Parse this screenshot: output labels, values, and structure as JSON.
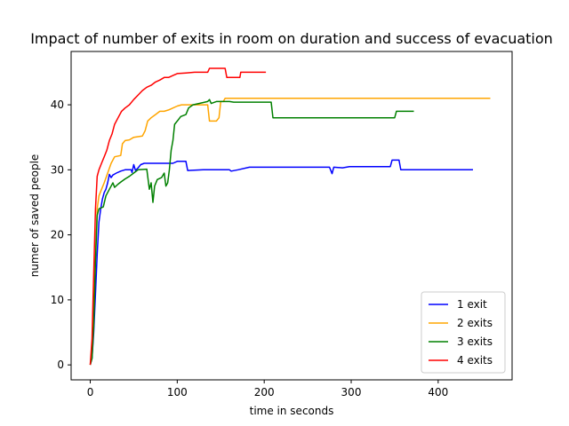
{
  "chart_data": {
    "type": "line",
    "title": "Impact of number of exits in room on duration and success of evacuation",
    "xlabel": "time in seconds",
    "ylabel": "numer of saved people",
    "xlim": [
      -22,
      485
    ],
    "ylim": [
      -2.3,
      48.2
    ],
    "xticks": [
      0,
      100,
      200,
      300,
      400
    ],
    "yticks": [
      0,
      10,
      20,
      30,
      40
    ],
    "grid": false,
    "legend_position": "lower-right",
    "series": [
      {
        "name": "1 exit",
        "color": "#0000ff",
        "points": [
          [
            0,
            0
          ],
          [
            2,
            1
          ],
          [
            4,
            5
          ],
          [
            6,
            11
          ],
          [
            8,
            17
          ],
          [
            10,
            22
          ],
          [
            12,
            24
          ],
          [
            14,
            25.5
          ],
          [
            16,
            26.5
          ],
          [
            18,
            27
          ],
          [
            20,
            28
          ],
          [
            22,
            29.3
          ],
          [
            24,
            28.8
          ],
          [
            26,
            29.2
          ],
          [
            30,
            29.5
          ],
          [
            35,
            29.8
          ],
          [
            40,
            30
          ],
          [
            47,
            30
          ],
          [
            48,
            29.6
          ],
          [
            50,
            30.8
          ],
          [
            52,
            29.9
          ],
          [
            55,
            30.3
          ],
          [
            58,
            30.8
          ],
          [
            62,
            31
          ],
          [
            95,
            31
          ],
          [
            100,
            31.3
          ],
          [
            110,
            31.3
          ],
          [
            112,
            29.9
          ],
          [
            130,
            30
          ],
          [
            160,
            30
          ],
          [
            162,
            29.8
          ],
          [
            170,
            30
          ],
          [
            183,
            30.4
          ],
          [
            275,
            30.4
          ],
          [
            278,
            29.4
          ],
          [
            280,
            30.4
          ],
          [
            290,
            30.3
          ],
          [
            298,
            30.5
          ],
          [
            345,
            30.5
          ],
          [
            347,
            31.5
          ],
          [
            355,
            31.5
          ],
          [
            357,
            30
          ],
          [
            440,
            30
          ]
        ]
      },
      {
        "name": "2 exits",
        "color": "#ffa500",
        "points": [
          [
            0,
            0
          ],
          [
            2,
            2
          ],
          [
            4,
            8
          ],
          [
            6,
            17
          ],
          [
            8,
            24
          ],
          [
            10,
            26
          ],
          [
            13,
            27
          ],
          [
            16,
            28
          ],
          [
            20,
            29.5
          ],
          [
            24,
            31
          ],
          [
            28,
            32
          ],
          [
            35,
            32.2
          ],
          [
            37,
            34
          ],
          [
            40,
            34.5
          ],
          [
            45,
            34.6
          ],
          [
            50,
            35
          ],
          [
            60,
            35.2
          ],
          [
            63,
            36
          ],
          [
            66,
            37.5
          ],
          [
            70,
            38
          ],
          [
            75,
            38.5
          ],
          [
            80,
            39
          ],
          [
            85,
            39
          ],
          [
            90,
            39.2
          ],
          [
            95,
            39.5
          ],
          [
            100,
            39.8
          ],
          [
            105,
            40
          ],
          [
            135,
            40
          ],
          [
            137,
            37.5
          ],
          [
            145,
            37.5
          ],
          [
            148,
            38
          ],
          [
            150,
            40.5
          ],
          [
            153,
            40.5
          ],
          [
            155,
            41
          ],
          [
            460,
            41
          ]
        ]
      },
      {
        "name": "3 exits",
        "color": "#008000",
        "points": [
          [
            0,
            0
          ],
          [
            2,
            1
          ],
          [
            4,
            6
          ],
          [
            6,
            16
          ],
          [
            8,
            23
          ],
          [
            10,
            24
          ],
          [
            15,
            24.3
          ],
          [
            18,
            26
          ],
          [
            22,
            27
          ],
          [
            26,
            28
          ],
          [
            28,
            27.3
          ],
          [
            32,
            27.8
          ],
          [
            36,
            28.2
          ],
          [
            40,
            28.6
          ],
          [
            45,
            29
          ],
          [
            50,
            29.5
          ],
          [
            55,
            30
          ],
          [
            65,
            30.1
          ],
          [
            68,
            27
          ],
          [
            70,
            28
          ],
          [
            72,
            25
          ],
          [
            74,
            27.5
          ],
          [
            77,
            28.5
          ],
          [
            82,
            28.8
          ],
          [
            85,
            29.5
          ],
          [
            87,
            27.5
          ],
          [
            89,
            28
          ],
          [
            91,
            30
          ],
          [
            93,
            33
          ],
          [
            95,
            34.5
          ],
          [
            97,
            37
          ],
          [
            100,
            37.5
          ],
          [
            104,
            38.2
          ],
          [
            110,
            38.5
          ],
          [
            113,
            39.5
          ],
          [
            118,
            40
          ],
          [
            125,
            40.2
          ],
          [
            135,
            40.5
          ],
          [
            137,
            40.8
          ],
          [
            139,
            40.2
          ],
          [
            145,
            40.5
          ],
          [
            160,
            40.5
          ],
          [
            165,
            40.4
          ],
          [
            208,
            40.4
          ],
          [
            210,
            38
          ],
          [
            350,
            38
          ],
          [
            352,
            39
          ],
          [
            372,
            39
          ]
        ]
      },
      {
        "name": "4 exits",
        "color": "#ff0000",
        "points": [
          [
            0,
            0
          ],
          [
            2,
            4
          ],
          [
            4,
            14
          ],
          [
            6,
            24
          ],
          [
            8,
            29
          ],
          [
            10,
            30
          ],
          [
            13,
            31
          ],
          [
            16,
            32
          ],
          [
            19,
            33
          ],
          [
            22,
            34.5
          ],
          [
            25,
            35.5
          ],
          [
            28,
            37
          ],
          [
            32,
            38
          ],
          [
            36,
            39
          ],
          [
            40,
            39.5
          ],
          [
            45,
            40
          ],
          [
            50,
            40.8
          ],
          [
            55,
            41.5
          ],
          [
            60,
            42.2
          ],
          [
            65,
            42.7
          ],
          [
            70,
            43
          ],
          [
            75,
            43.5
          ],
          [
            80,
            43.8
          ],
          [
            85,
            44.2
          ],
          [
            90,
            44.2
          ],
          [
            95,
            44.5
          ],
          [
            100,
            44.8
          ],
          [
            110,
            44.9
          ],
          [
            120,
            45
          ],
          [
            135,
            45
          ],
          [
            137,
            45.6
          ],
          [
            155,
            45.6
          ],
          [
            157,
            44.2
          ],
          [
            172,
            44.2
          ],
          [
            173,
            45
          ],
          [
            202,
            45
          ]
        ]
      }
    ]
  }
}
